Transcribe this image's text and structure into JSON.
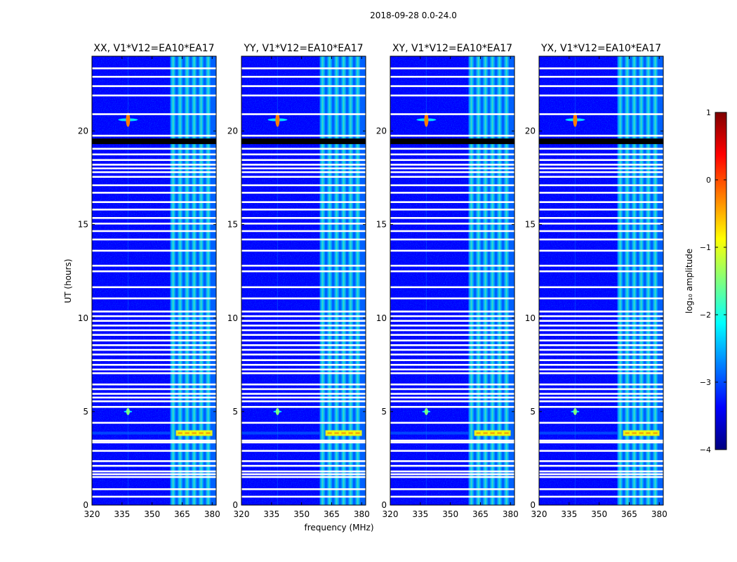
{
  "suptitle": "2018-09-28 0.0-24.0",
  "xlabel": "frequency (MHz)",
  "ylabel": "UT (hours)",
  "colorbar_label": "log₁₀ amplitude",
  "colors": {
    "colormap": [
      "#00007f",
      "#0000ff",
      "#007fff",
      "#00ffff",
      "#7fff7f",
      "#ffff00",
      "#ff7f00",
      "#ff0000",
      "#7f0000"
    ],
    "flag": "#ffffff",
    "gap": "#000000"
  },
  "chart_data": {
    "type": "heatmap",
    "title": "2018-09-28 0.0-24.0",
    "xlabel": "frequency (MHz)",
    "ylabel": "UT (hours)",
    "xlim": [
      320,
      382
    ],
    "ylim": [
      0,
      24
    ],
    "xticks": [
      320,
      335,
      350,
      365,
      380
    ],
    "yticks": [
      0,
      5,
      10,
      15,
      20
    ],
    "colorbar": {
      "label": "log10 amplitude",
      "range": [
        -4,
        1
      ],
      "ticks": [
        1,
        0,
        -1,
        -2,
        -3,
        -4
      ]
    },
    "panels": [
      {
        "name": "xx",
        "title": "XX, V1*V12=EA10*EA17"
      },
      {
        "name": "yy",
        "title": "YY, V1*V12=EA10*EA17"
      },
      {
        "name": "xy",
        "title": "XY, V1*V12=EA10*EA17"
      },
      {
        "name": "yx",
        "title": "YX, V1*V12=EA10*EA17"
      }
    ],
    "features": {
      "rfi_band_mhz": [
        359,
        382
      ],
      "rfi_sub_channels_mhz": [
        360.5,
        364,
        367.5,
        371,
        374.5,
        378
      ],
      "narrowband_spur_mhz": 338,
      "spur_burst_ut_hours": [
        20.6,
        5.0
      ],
      "strong_rfi_ut_hours": [
        3.7,
        4.0
      ],
      "data_gap_ut_hours": [
        19.3,
        19.6
      ],
      "flagged_ut_hours": [
        0.45,
        0.85,
        1.5,
        1.65,
        1.8,
        2.1,
        2.35,
        2.9,
        3.35,
        3.45,
        4.4,
        5.25,
        5.55,
        5.75,
        5.95,
        6.2,
        6.45,
        7.05,
        7.25,
        7.5,
        7.75,
        8.05,
        8.3,
        8.55,
        8.8,
        9.1,
        9.35,
        9.6,
        9.85,
        10.1,
        10.35,
        11.05,
        11.65,
        12.5,
        12.8,
        13.6,
        14.2,
        14.65,
        15.05,
        15.35,
        15.8,
        16.2,
        16.7,
        17.1,
        17.55,
        17.8,
        18.0,
        18.2,
        18.45,
        18.75,
        19.05,
        19.75,
        20.9,
        21.9,
        22.4,
        22.9,
        23.35
      ]
    }
  }
}
